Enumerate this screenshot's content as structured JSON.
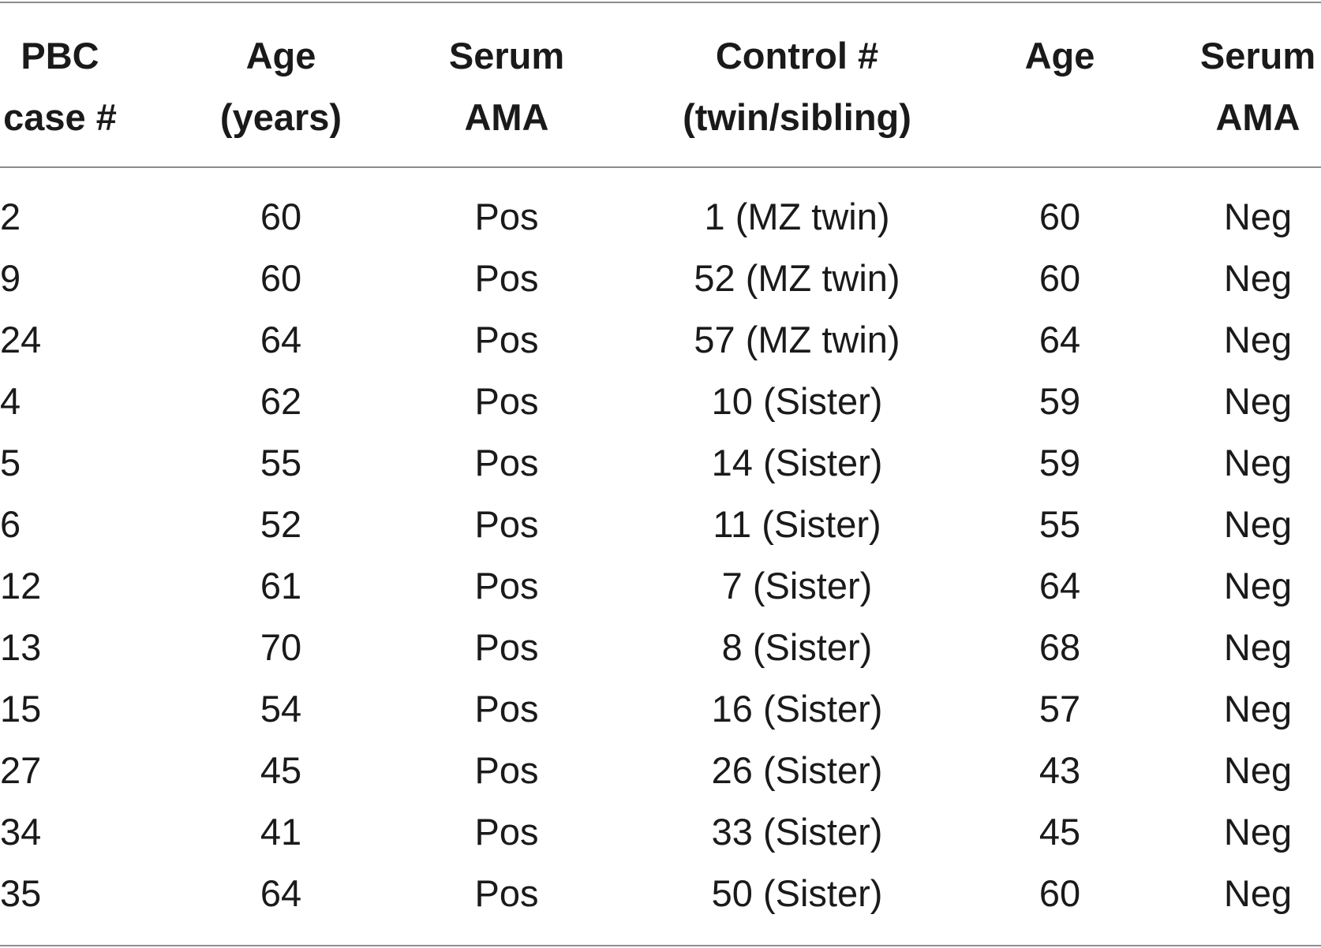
{
  "table": {
    "headers": [
      [
        "PBC",
        "case #"
      ],
      [
        "Age",
        "(years)"
      ],
      [
        "Serum",
        "AMA"
      ],
      [
        "Control #",
        "(twin/sibling)"
      ],
      [
        "Age",
        ""
      ],
      [
        "Serum",
        "AMA"
      ]
    ],
    "rows": [
      [
        "2",
        "60",
        "Pos",
        "1 (MZ twin)",
        "60",
        "Neg"
      ],
      [
        "9",
        "60",
        "Pos",
        "52 (MZ twin)",
        "60",
        "Neg"
      ],
      [
        "24",
        "64",
        "Pos",
        "57 (MZ twin)",
        "64",
        "Neg"
      ],
      [
        "4",
        "62",
        "Pos",
        "10 (Sister)",
        "59",
        "Neg"
      ],
      [
        "5",
        "55",
        "Pos",
        "14 (Sister)",
        "59",
        "Neg"
      ],
      [
        "6",
        "52",
        "Pos",
        "11 (Sister)",
        "55",
        "Neg"
      ],
      [
        "12",
        "61",
        "Pos",
        "7 (Sister)",
        "64",
        "Neg"
      ],
      [
        "13",
        "70",
        "Pos",
        "8 (Sister)",
        "68",
        "Neg"
      ],
      [
        "15",
        "54",
        "Pos",
        "16 (Sister)",
        "57",
        "Neg"
      ],
      [
        "27",
        "45",
        "Pos",
        "26 (Sister)",
        "43",
        "Neg"
      ],
      [
        "34",
        "41",
        "Pos",
        "33 (Sister)",
        "45",
        "Neg"
      ],
      [
        "35",
        "64",
        "Pos",
        "50 (Sister)",
        "60",
        "Neg"
      ]
    ]
  }
}
